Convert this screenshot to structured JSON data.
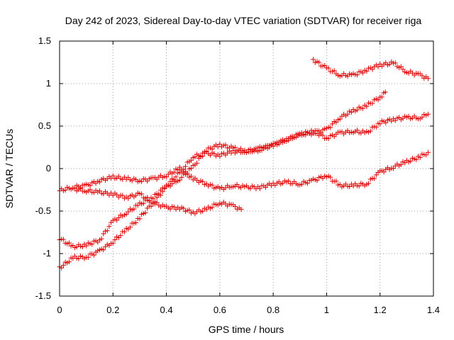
{
  "chart_data": {
    "type": "scatter",
    "title": "Day 242 of 2023, Sidereal Day-to-day VTEC variation (SDTVAR) for receiver riga",
    "xlabel": "GPS time / hours",
    "ylabel": "SDTVAR / TECUs",
    "xlim": [
      0,
      1.4
    ],
    "ylim": [
      -1.5,
      1.5
    ],
    "xticks": [
      "0",
      "0.2",
      "0.4",
      "0.6",
      "0.8",
      "1",
      "1.2",
      "1.4"
    ],
    "yticks": [
      "1.5",
      "1",
      "0.5",
      "0",
      "-0.5",
      "-1",
      "-1.5"
    ],
    "grid": true,
    "marker": "+",
    "color": "#e00000",
    "series": [
      {
        "x": [
          0,
          0.05,
          0.1,
          0.15,
          0.2,
          0.25,
          0.3,
          0.35,
          0.4,
          0.45,
          0.5,
          0.55,
          0.6,
          0.65,
          0.7,
          0.75,
          0.8,
          0.85,
          0.9,
          0.95,
          1.0,
          1.05,
          1.1,
          1.15,
          1.2,
          1.25,
          1.3,
          1.35,
          1.38
        ],
        "y": [
          -0.26,
          -0.22,
          -0.2,
          -0.14,
          -0.1,
          -0.12,
          -0.14,
          -0.12,
          -0.08,
          0.0,
          -0.12,
          -0.18,
          -0.24,
          -0.2,
          -0.22,
          -0.22,
          -0.18,
          -0.16,
          -0.18,
          -0.14,
          -0.08,
          -0.2,
          -0.2,
          -0.18,
          -0.04,
          0.02,
          0.08,
          0.14,
          0.19
        ]
      },
      {
        "x": [
          0,
          0.05,
          0.1,
          0.15,
          0.2,
          0.25,
          0.3,
          0.35,
          0.4,
          0.45,
          0.5,
          0.55,
          0.6,
          0.65,
          0.7,
          0.75,
          0.8,
          0.85,
          0.9,
          0.95,
          1.0,
          1.05,
          1.1,
          1.15,
          1.2,
          1.22
        ],
        "y": [
          -1.17,
          -1.05,
          -1.04,
          -0.97,
          -0.86,
          -0.72,
          -0.58,
          -0.4,
          -0.22,
          -0.12,
          0.02,
          0.22,
          0.28,
          0.24,
          0.2,
          0.24,
          0.28,
          0.34,
          0.4,
          0.42,
          0.46,
          0.6,
          0.68,
          0.74,
          0.84,
          0.9
        ]
      },
      {
        "x": [
          0,
          0.05,
          0.1,
          0.15,
          0.2,
          0.25,
          0.3,
          0.35,
          0.4,
          0.45,
          0.5,
          0.55,
          0.6,
          0.65,
          0.7,
          0.75,
          0.8,
          0.85,
          0.9,
          0.95,
          1.0,
          1.05,
          1.1,
          1.15,
          1.2,
          1.25,
          1.3,
          1.35,
          1.38
        ],
        "y": [
          -0.82,
          -0.92,
          -0.9,
          -0.84,
          -0.62,
          -0.52,
          -0.42,
          -0.34,
          -0.2,
          -0.05,
          0.14,
          0.18,
          0.16,
          0.2,
          0.2,
          0.22,
          0.28,
          0.34,
          0.4,
          0.44,
          0.36,
          0.42,
          0.44,
          0.42,
          0.54,
          0.58,
          0.6,
          0.6,
          0.64
        ]
      },
      {
        "x": [
          0.05,
          0.1,
          0.15,
          0.2,
          0.25,
          0.3,
          0.35,
          0.4,
          0.45,
          0.5,
          0.55,
          0.6,
          0.65,
          0.68
        ],
        "y": [
          -0.24,
          -0.26,
          -0.28,
          -0.3,
          -0.34,
          -0.3,
          -0.4,
          -0.46,
          -0.46,
          -0.52,
          -0.48,
          -0.4,
          -0.44,
          -0.48
        ]
      },
      {
        "x": [
          0.95,
          1.0,
          1.05,
          1.1,
          1.15,
          1.2,
          1.25,
          1.3,
          1.35,
          1.38
        ],
        "y": [
          1.28,
          1.18,
          1.1,
          1.1,
          1.16,
          1.22,
          1.24,
          1.14,
          1.1,
          1.06
        ]
      }
    ]
  }
}
